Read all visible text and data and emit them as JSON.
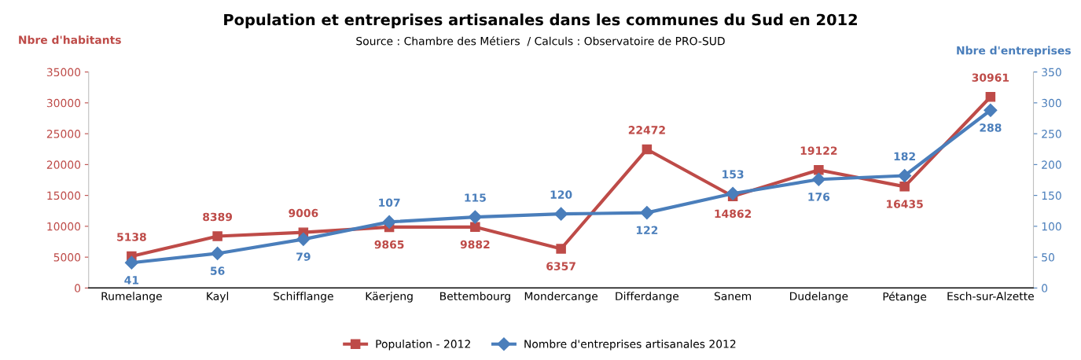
{
  "chart_data": {
    "type": "line",
    "title": "Population et entreprises artisanales dans les communes du Sud en 2012",
    "subtitle": "Source : Chambre des Métiers  / Calculs : Observatoire de PRO-SUD",
    "ylabel": "Nbre d'habitants",
    "y2label": "Nbre d'entreprises",
    "categories": [
      "Rumelange",
      "Kayl",
      "Schifflange",
      "Käerjeng",
      "Bettembourg",
      "Mondercange",
      "Differdange",
      "Sanem",
      "Dudelange",
      "Pétange",
      "Esch-sur-Alzette"
    ],
    "series": [
      {
        "name": "Population - 2012",
        "color": "#be4b48",
        "marker": "square",
        "values": [
          5138,
          8389,
          9006,
          9865,
          9882,
          6357,
          22472,
          14862,
          19122,
          16435,
          30961
        ]
      },
      {
        "name": "Nombre d'entreprises artisanales 2012",
        "color": "#4a7ebb",
        "marker": "diamond",
        "axis": "y2",
        "values": [
          41,
          56,
          79,
          107,
          115,
          120,
          122,
          153,
          176,
          182,
          288
        ]
      }
    ],
    "ylim": [
      0,
      35000
    ],
    "yticks": [
      0,
      5000,
      10000,
      15000,
      20000,
      25000,
      30000,
      35000
    ],
    "y2lim": [
      0,
      350
    ],
    "y2ticks": [
      0,
      50,
      100,
      150,
      200,
      250,
      300,
      350
    ],
    "data_labels": true,
    "legend": "bottom",
    "grid": false,
    "line_style": "solid"
  }
}
